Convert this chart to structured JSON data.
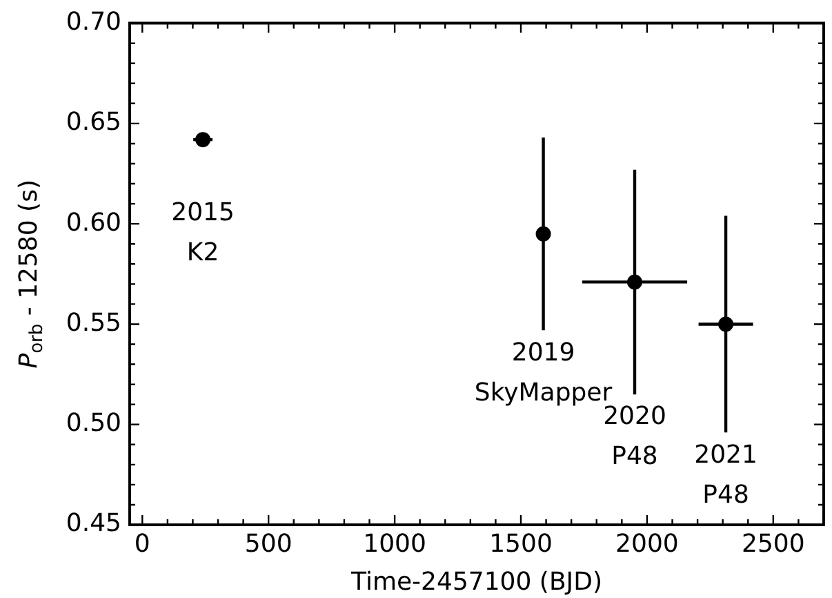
{
  "chart_data": {
    "type": "scatter",
    "xlabel": "Time-2457100 (BJD)",
    "ylabel": "P$_{orb}$ - 12580 (s)",
    "x": [
      240,
      1589,
      1951,
      2312
    ],
    "values": [
      0.642,
      0.595,
      0.571,
      0.55
    ],
    "errors": [
      null,
      0.048,
      0.056,
      0.054
    ],
    "xerrors": [
      38,
      null,
      208,
      108
    ],
    "color": "#000000",
    "marker": "circle",
    "grid": false,
    "legend": false,
    "xlim": [
      -50,
      2700
    ],
    "xticks": [
      0,
      {
        "value": 100,
        "label": null
      },
      {
        "value": 200,
        "label": null
      },
      {
        "value": 300,
        "label": null
      },
      {
        "value": 400,
        "label": null
      },
      500,
      {
        "value": 600,
        "label": null
      },
      {
        "value": 700,
        "label": null
      },
      {
        "value": 800,
        "label": null
      },
      {
        "value": 900,
        "label": null
      },
      1000,
      {
        "value": 1100,
        "label": null
      },
      {
        "value": 1200,
        "label": null
      },
      {
        "value": 1300,
        "label": null
      },
      {
        "value": 1400,
        "label": null
      },
      1500,
      {
        "value": 1600,
        "label": null
      },
      {
        "value": 1700,
        "label": null
      },
      {
        "value": 1800,
        "label": null
      },
      {
        "value": 1900,
        "label": null
      },
      2000,
      {
        "value": 2100,
        "label": null
      },
      {
        "value": 2200,
        "label": null
      },
      {
        "value": 2300,
        "label": null
      },
      {
        "value": 2400,
        "label": null
      },
      2500,
      {
        "value": 2600,
        "label": null
      }
    ],
    "ylim": [
      0.45,
      0.7
    ],
    "yticks": [
      {
        "value": 0.45,
        "label": "0.45"
      },
      {
        "value": 0.46,
        "label": null
      },
      {
        "value": 0.47,
        "label": null
      },
      {
        "value": 0.48,
        "label": null
      },
      {
        "value": 0.49,
        "label": null
      },
      {
        "value": 0.5,
        "label": "0.50"
      },
      {
        "value": 0.51,
        "label": null
      },
      {
        "value": 0.52,
        "label": null
      },
      {
        "value": 0.53,
        "label": null
      },
      {
        "value": 0.54,
        "label": null
      },
      {
        "value": 0.55,
        "label": "0.55"
      },
      {
        "value": 0.56,
        "label": null
      },
      {
        "value": 0.57,
        "label": null
      },
      {
        "value": 0.58,
        "label": null
      },
      {
        "value": 0.59,
        "label": null
      },
      {
        "value": 0.6,
        "label": "0.60"
      },
      {
        "value": 0.61,
        "label": null
      },
      {
        "value": 0.62,
        "label": null
      },
      {
        "value": 0.63,
        "label": null
      },
      {
        "value": 0.64,
        "label": null
      },
      {
        "value": 0.65,
        "label": "0.65"
      },
      {
        "value": 0.66,
        "label": null
      },
      {
        "value": 0.67,
        "label": null
      },
      {
        "value": 0.68,
        "label": null
      },
      {
        "value": 0.69,
        "label": null
      },
      {
        "value": 0.7,
        "label": "0.70"
      }
    ],
    "annotations": [
      "2015\nK2",
      "2019\nSkyMapper",
      "2020\nP48",
      "2021\nP48"
    ]
  }
}
